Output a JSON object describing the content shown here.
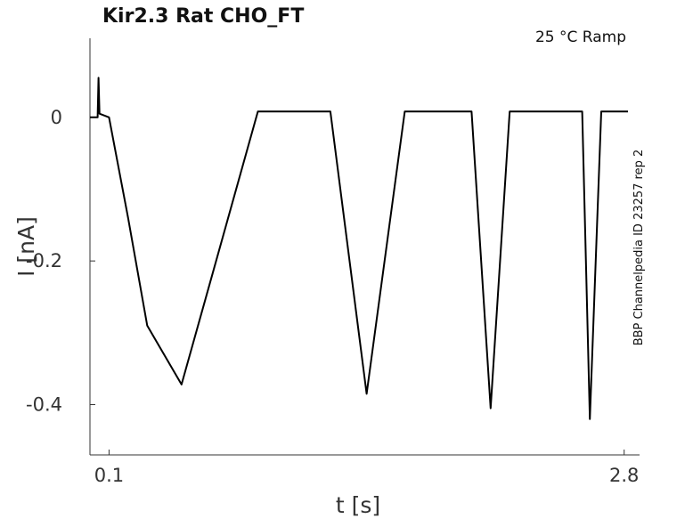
{
  "chart_data": {
    "type": "line",
    "title": "Kir2.3  Rat  CHO_FT",
    "condition_label": "25 °C  Ramp",
    "side_label": "BBP Channelpedia ID 23257 rep 2",
    "xlabel": "t [s]",
    "ylabel": "I [nA]",
    "xlim": [
      0.0,
      2.82
    ],
    "ylim": [
      -0.47,
      0.11
    ],
    "x_ticks": [
      {
        "value": 0.1,
        "label": "0.1"
      },
      {
        "value": 2.8,
        "label": "2.8"
      }
    ],
    "y_ticks": [
      {
        "value": 0,
        "label": "0"
      },
      {
        "value": -0.2,
        "label": "-0.2"
      },
      {
        "value": -0.4,
        "label": "-0.4"
      }
    ],
    "grid": false,
    "line_color": "#000000",
    "series": [
      {
        "values": [
          [
            0.0,
            0.0
          ],
          [
            0.04,
            0.0
          ],
          [
            0.045,
            0.055
          ],
          [
            0.05,
            0.005
          ],
          [
            0.1,
            0.0
          ],
          [
            0.2,
            -0.14
          ],
          [
            0.3,
            -0.29
          ],
          [
            0.48,
            -0.372
          ],
          [
            0.64,
            -0.22
          ],
          [
            0.88,
            0.008
          ],
          [
            1.26,
            0.008
          ],
          [
            1.45,
            -0.385
          ],
          [
            1.65,
            0.008
          ],
          [
            2.0,
            0.008
          ],
          [
            2.1,
            -0.405
          ],
          [
            2.2,
            0.008
          ],
          [
            2.58,
            0.008
          ],
          [
            2.62,
            -0.42
          ],
          [
            2.68,
            0.008
          ],
          [
            2.82,
            0.008
          ]
        ]
      }
    ]
  }
}
